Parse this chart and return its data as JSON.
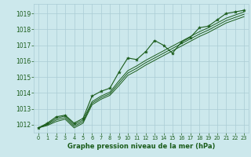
{
  "title": "Graphe pression niveau de la mer (hPa)",
  "bg_color": "#cce8ec",
  "grid_color": "#aaccd4",
  "line_color": "#1a5c1a",
  "marker_color": "#1a5c1a",
  "xlim": [
    -0.5,
    23.5
  ],
  "ylim": [
    1011.5,
    1019.6
  ],
  "yticks": [
    1012,
    1013,
    1014,
    1015,
    1016,
    1017,
    1018,
    1019
  ],
  "xticks": [
    0,
    1,
    2,
    3,
    4,
    5,
    6,
    7,
    8,
    9,
    10,
    11,
    12,
    13,
    14,
    15,
    16,
    17,
    18,
    19,
    20,
    21,
    22,
    23
  ],
  "series1": [
    1011.8,
    1012.1,
    1012.5,
    1012.6,
    1012.1,
    1012.4,
    1013.8,
    1014.1,
    1014.3,
    1015.3,
    1016.2,
    1016.1,
    1016.6,
    1017.3,
    1017.0,
    1016.5,
    1017.2,
    1017.5,
    1018.1,
    1018.2,
    1018.6,
    1019.0,
    1019.1,
    1019.2
  ],
  "series2": [
    1011.8,
    1012.05,
    1012.4,
    1012.55,
    1012.0,
    1012.3,
    1013.45,
    1013.8,
    1014.05,
    1014.75,
    1015.4,
    1015.7,
    1016.05,
    1016.35,
    1016.65,
    1016.95,
    1017.25,
    1017.55,
    1017.85,
    1018.1,
    1018.4,
    1018.7,
    1018.9,
    1019.1
  ],
  "series3": [
    1011.8,
    1012.0,
    1012.3,
    1012.45,
    1011.9,
    1012.2,
    1013.35,
    1013.7,
    1013.95,
    1014.6,
    1015.25,
    1015.55,
    1015.9,
    1016.2,
    1016.5,
    1016.8,
    1017.1,
    1017.4,
    1017.7,
    1017.95,
    1018.25,
    1018.55,
    1018.75,
    1018.95
  ],
  "series4": [
    1011.8,
    1011.95,
    1012.2,
    1012.35,
    1011.8,
    1012.1,
    1013.25,
    1013.6,
    1013.85,
    1014.45,
    1015.1,
    1015.4,
    1015.75,
    1016.05,
    1016.35,
    1016.65,
    1016.95,
    1017.25,
    1017.55,
    1017.8,
    1018.1,
    1018.4,
    1018.6,
    1018.8
  ]
}
